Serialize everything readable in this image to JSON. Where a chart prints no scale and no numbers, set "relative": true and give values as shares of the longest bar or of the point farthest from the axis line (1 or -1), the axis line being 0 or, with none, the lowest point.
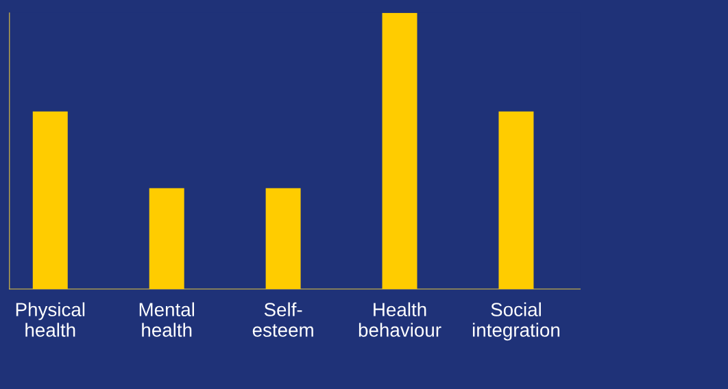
{
  "chart_data": {
    "type": "bar",
    "relative": true,
    "categories": [
      "Physical\nhealth",
      "Mental\nhealth",
      "Self-\nesteem",
      "Health\nbehaviour",
      "Social\nintegration"
    ],
    "values": [
      0.643,
      0.365,
      0.365,
      1,
      0.643
    ],
    "color": "#ffcc00"
  }
}
